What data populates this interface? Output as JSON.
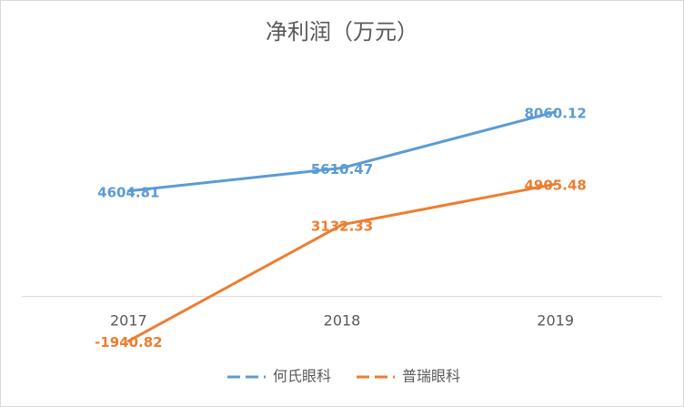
{
  "chart_data": {
    "type": "line",
    "title": "净利润（万元）",
    "categories": [
      "2017",
      "2018",
      "2019"
    ],
    "series": [
      {
        "name": "何氏眼科",
        "color": "#5b9bd5",
        "values": [
          4604.81,
          5610.47,
          8060.12
        ]
      },
      {
        "name": "普瑞眼科",
        "color": "#ed7d31",
        "values": [
          -1940.82,
          3132.33,
          4905.48
        ]
      }
    ],
    "ylim": [
      -2000,
      10000
    ],
    "legend": "bottom"
  }
}
